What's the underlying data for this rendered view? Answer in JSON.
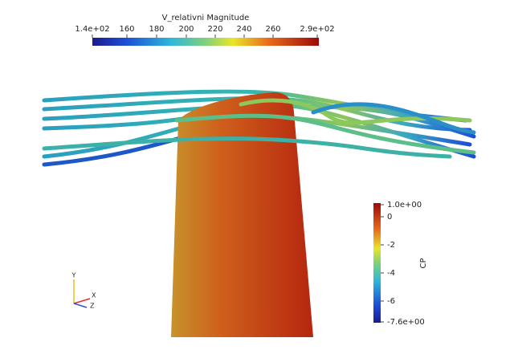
{
  "colorbars": [
    {
      "title": "V_relativni Magnitude",
      "labels": [
        "1.4e+02",
        "160",
        "180",
        "200",
        "220",
        "240",
        "260",
        "2.9e+02"
      ]
    },
    {
      "title": "CP",
      "labels": [
        "1.0e+00",
        "0",
        "-2",
        "-4",
        "-6",
        "-7.6e+00"
      ]
    }
  ],
  "axes_triad": {
    "labels": [
      "Y",
      "X",
      "Z"
    ]
  }
}
